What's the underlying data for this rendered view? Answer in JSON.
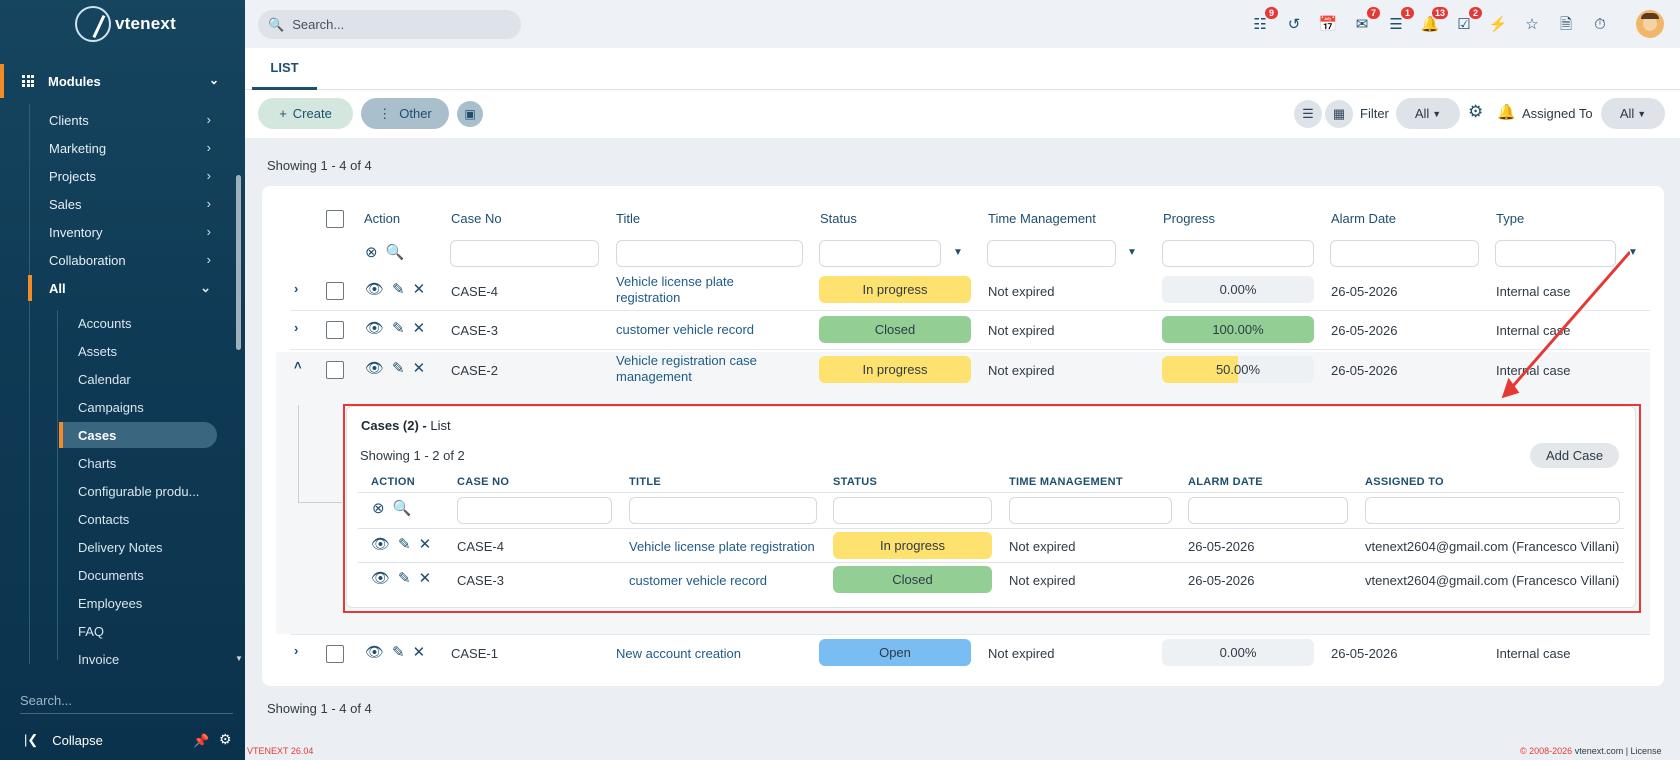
{
  "app": {
    "name": "vtenext",
    "version": "VTENEXT 26.04",
    "copyright_symbol": "© 2008-2026",
    "copyright_site": "vtenext.com | License"
  },
  "sidebar": {
    "modules_label": "Modules",
    "items": [
      {
        "label": "Clients"
      },
      {
        "label": "Marketing"
      },
      {
        "label": "Projects"
      },
      {
        "label": "Sales"
      },
      {
        "label": "Inventory"
      },
      {
        "label": "Collaboration"
      },
      {
        "label": "All"
      }
    ],
    "sub_items": [
      {
        "label": "Accounts"
      },
      {
        "label": "Assets"
      },
      {
        "label": "Calendar"
      },
      {
        "label": "Campaigns"
      },
      {
        "label": "Cases"
      },
      {
        "label": "Charts"
      },
      {
        "label": "Configurable produ..."
      },
      {
        "label": "Contacts"
      },
      {
        "label": "Delivery Notes"
      },
      {
        "label": "Documents"
      },
      {
        "label": "Employees"
      },
      {
        "label": "FAQ"
      },
      {
        "label": "Invoice"
      }
    ],
    "active_item": "Cases",
    "search_placeholder": "Search...",
    "collapse_label": "Collapse"
  },
  "topbar": {
    "search_placeholder": "Search...",
    "badges": {
      "processes": "9",
      "messages": "7",
      "talks": "1",
      "notifications": "13",
      "todos": "2"
    }
  },
  "tabs": {
    "list": "LIST"
  },
  "toolbar": {
    "create": "Create",
    "other": "Other",
    "filter_label": "Filter",
    "filter_value": "All",
    "assigned_label": "Assigned To",
    "assigned_value": "All"
  },
  "listing": {
    "showing": "Showing 1 - 4 of 4",
    "columns": {
      "action": "Action",
      "case_no": "Case No",
      "title": "Title",
      "status": "Status",
      "time": "Time Management",
      "progress": "Progress",
      "alarm": "Alarm Date",
      "type": "Type"
    },
    "rows": [
      {
        "case_no": "CASE-4",
        "title_1": "Vehicle license plate",
        "title_2": "registration",
        "status": "In progress",
        "time": "Not expired",
        "progress": "0.00%",
        "progress_value": 0,
        "alarm": "26-05-2026",
        "type": "Internal case"
      },
      {
        "case_no": "CASE-3",
        "title_1": "customer vehicle record",
        "title_2": "",
        "status": "Closed",
        "time": "Not expired",
        "progress": "100.00%",
        "progress_value": 100,
        "alarm": "26-05-2026",
        "type": "Internal case"
      },
      {
        "case_no": "CASE-2",
        "title_1": "Vehicle registration case",
        "title_2": "management",
        "status": "In progress",
        "time": "Not expired",
        "progress": "50.00%",
        "progress_value": 50,
        "alarm": "26-05-2026",
        "type": "Internal case"
      },
      {
        "case_no": "CASE-1",
        "title_1": "New account creation",
        "title_2": "",
        "status": "Open",
        "time": "Not expired",
        "progress": "0.00%",
        "progress_value": 0,
        "alarm": "26-05-2026",
        "type": "Internal case"
      }
    ]
  },
  "related": {
    "title_bold": "Cases (2) -",
    "title_rest": "List",
    "showing": "Showing 1 - 2 of 2",
    "add_button": "Add Case",
    "columns": {
      "action": "ACTION",
      "case_no": "CASE NO",
      "title": "TITLE",
      "status": "STATUS",
      "time": "TIME MANAGEMENT",
      "alarm": "ALARM DATE",
      "assigned": "ASSIGNED TO"
    },
    "rows": [
      {
        "case_no": "CASE-4",
        "title": "Vehicle license plate registration",
        "status": "In progress",
        "time": "Not expired",
        "alarm": "26-05-2026",
        "assigned": "vtenext2604@gmail.com (Francesco Villani)"
      },
      {
        "case_no": "CASE-3",
        "title": "customer vehicle record",
        "status": "Closed",
        "time": "Not expired",
        "alarm": "26-05-2026",
        "assigned": "vtenext2604@gmail.com (Francesco Villani)"
      }
    ]
  },
  "colors": {
    "sidebar": "#0f3a55",
    "accent": "#f28c28",
    "in_progress": "#fde26f",
    "closed": "#93cf95",
    "open": "#79bdf3",
    "highlight": "#e53935"
  }
}
